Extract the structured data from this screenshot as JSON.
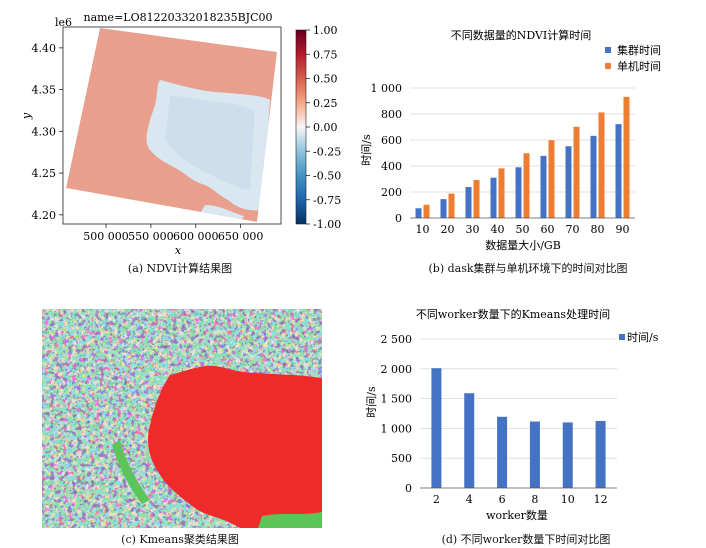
{
  "captions": {
    "a": "(a) NDVI计算结果图",
    "b": "(b) dask集群与单机环境下的时间对比图",
    "c": "(c) Kmeans聚类结果图",
    "d": "(d) 不同worker数量下时间对比图"
  },
  "colors": {
    "cluster": "#4472c4",
    "single": "#ed7d31",
    "kmeans_red": "#ee2a2a",
    "kmeans_blue": "#3b5bd6",
    "kmeans_cyan": "#3fb8c8",
    "kmeans_green": "#5cc55a",
    "kmeans_magenta": "#c246c8"
  },
  "chart_data": [
    {
      "type": "heatmap",
      "title": "name=LO81220332018235BJC00",
      "xlabel": "x",
      "ylabel": "y",
      "y_offset_label": "le6",
      "x_ticks": [
        "500 000",
        "550 000",
        "600 000",
        "650 000"
      ],
      "x_tick_values": [
        500000,
        550000,
        600000,
        650000
      ],
      "xlim": [
        452000,
        695000
      ],
      "y_ticks": [
        "4.40",
        "4.35",
        "4.30",
        "4.25",
        "4.20"
      ],
      "y_tick_values": [
        4.4,
        4.35,
        4.3,
        4.25,
        4.2
      ],
      "ylim": [
        4.189,
        4.425
      ],
      "colorbar_ticks": [
        "1.00",
        "0.75",
        "0.50",
        "0.25",
        "0.00",
        "-0.25",
        "-0.50",
        "-0.75",
        "-1.00"
      ],
      "colorbar_range": [
        -1.0,
        1.0
      ],
      "colormap": "RdBu_r"
    },
    {
      "type": "bar",
      "title": "不同数据量的NDVI计算时间",
      "xlabel": "数据量大小/GB",
      "ylabel": "时间/s",
      "categories": [
        "10",
        "20",
        "30",
        "40",
        "50",
        "60",
        "70",
        "80",
        "90"
      ],
      "series": [
        {
          "name": "集群时间",
          "values": [
            75,
            145,
            238,
            310,
            390,
            478,
            552,
            632,
            722
          ]
        },
        {
          "name": "单机时间",
          "values": [
            102,
            188,
            292,
            382,
            498,
            598,
            702,
            812,
            932
          ]
        }
      ],
      "y_ticks": [
        "0",
        "200",
        "400",
        "600",
        "800",
        "1 000"
      ],
      "y_tick_values": [
        0,
        200,
        400,
        600,
        800,
        1000
      ],
      "ylim": [
        0,
        1000
      ],
      "legend": "top-right"
    },
    {
      "type": "heatmap",
      "title": "",
      "description_classes": 5
    },
    {
      "type": "bar",
      "title": "不同worker数量下的Kmeans处理时间",
      "xlabel": "worker数量",
      "ylabel": "时间/s",
      "categories": [
        "2",
        "4",
        "6",
        "8",
        "10",
        "12"
      ],
      "series": [
        {
          "name": "时间/s",
          "values": [
            2010,
            1590,
            1195,
            1115,
            1100,
            1125
          ]
        }
      ],
      "y_ticks": [
        "0",
        "500",
        "1 000",
        "1 500",
        "2 000",
        "2 500"
      ],
      "y_tick_values": [
        0,
        500,
        1000,
        1500,
        2000,
        2500
      ],
      "ylim": [
        0,
        2500
      ],
      "legend": "top-right"
    }
  ]
}
